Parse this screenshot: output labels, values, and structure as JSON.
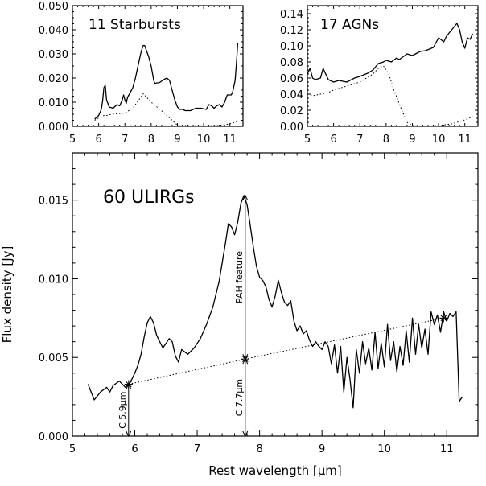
{
  "chart_data": [
    {
      "type": "line",
      "title": "11 Starbursts",
      "xlim": [
        5,
        11.5
      ],
      "ylim": [
        0,
        0.05
      ],
      "xticks": [
        5,
        6,
        7,
        8,
        9,
        10,
        11
      ],
      "yticks": [
        "0.000",
        "0.010",
        "0.020",
        "0.030",
        "0.040",
        "0.050"
      ],
      "series": [
        {
          "style": "solid",
          "x": [
            5.85,
            6.0,
            6.1,
            6.15,
            6.2,
            6.25,
            6.3,
            6.4,
            6.55,
            6.7,
            6.8,
            6.9,
            6.95,
            7.0,
            7.05,
            7.1,
            7.2,
            7.3,
            7.4,
            7.5,
            7.6,
            7.65,
            7.7,
            7.75,
            7.8,
            7.9,
            8.0,
            8.1,
            8.15,
            8.2,
            8.3,
            8.5,
            8.6,
            8.7,
            8.8,
            8.9,
            9.0,
            9.1,
            9.2,
            9.3,
            9.5,
            9.7,
            9.9,
            10.1,
            10.2,
            10.3,
            10.4,
            10.5,
            10.6,
            10.7,
            10.8,
            10.9,
            11.0,
            11.05,
            11.1,
            11.2,
            11.25,
            11.3
          ],
          "y": [
            0.003,
            0.0045,
            0.007,
            0.0105,
            0.016,
            0.017,
            0.011,
            0.008,
            0.0075,
            0.009,
            0.0085,
            0.011,
            0.013,
            0.011,
            0.0095,
            0.012,
            0.014,
            0.016,
            0.02,
            0.025,
            0.03,
            0.032,
            0.0335,
            0.0335,
            0.032,
            0.029,
            0.025,
            0.019,
            0.0175,
            0.018,
            0.018,
            0.0195,
            0.02,
            0.019,
            0.015,
            0.011,
            0.008,
            0.007,
            0.007,
            0.0065,
            0.0065,
            0.0075,
            0.0075,
            0.007,
            0.009,
            0.0085,
            0.0075,
            0.0085,
            0.009,
            0.008,
            0.01,
            0.013,
            0.013,
            0.013,
            0.014,
            0.019,
            0.026,
            0.0345
          ]
        },
        {
          "style": "dotted",
          "x": [
            5.85,
            6.0,
            6.2,
            6.3,
            6.5,
            7.0,
            7.3,
            7.7,
            8.0,
            8.5,
            8.8,
            9.0,
            9.5,
            10.0,
            10.5,
            11.0,
            11.3
          ],
          "y": [
            0.0025,
            0.0035,
            0.0045,
            0.0045,
            0.005,
            0.0055,
            0.0075,
            0.0135,
            0.01,
            0.0055,
            0.0025,
            0.0005,
            0.0002,
            0.0002,
            0.0003,
            0.001,
            0.002
          ]
        }
      ]
    },
    {
      "type": "line",
      "title": "17 AGNs",
      "xlim": [
        5,
        11.5
      ],
      "ylim": [
        0,
        0.15
      ],
      "xticks": [
        5,
        6,
        7,
        8,
        9,
        10,
        11
      ],
      "yticks": [
        "0.00",
        "0.02",
        "0.04",
        "0.06",
        "0.08",
        "0.10",
        "0.12",
        "0.14"
      ],
      "series": [
        {
          "style": "solid",
          "x": [
            5.0,
            5.1,
            5.2,
            5.3,
            5.5,
            5.6,
            5.7,
            5.8,
            6.0,
            6.2,
            6.5,
            6.8,
            7.0,
            7.3,
            7.5,
            7.7,
            7.9,
            8.0,
            8.2,
            8.4,
            8.5,
            8.8,
            9.0,
            9.3,
            9.5,
            9.8,
            10.0,
            10.2,
            10.3,
            10.5,
            10.7,
            10.8,
            10.9,
            11.0,
            11.1,
            11.2,
            11.3
          ],
          "y": [
            0.065,
            0.072,
            0.06,
            0.058,
            0.06,
            0.072,
            0.065,
            0.058,
            0.055,
            0.057,
            0.055,
            0.06,
            0.062,
            0.066,
            0.07,
            0.078,
            0.08,
            0.082,
            0.08,
            0.085,
            0.083,
            0.09,
            0.088,
            0.093,
            0.094,
            0.098,
            0.11,
            0.105,
            0.112,
            0.12,
            0.128,
            0.12,
            0.105,
            0.097,
            0.11,
            0.108,
            0.115
          ]
        },
        {
          "style": "dotted",
          "x": [
            5.0,
            5.2,
            5.5,
            5.8,
            6.0,
            6.5,
            7.0,
            7.5,
            7.7,
            7.9,
            8.1,
            8.3,
            8.6,
            8.8,
            9.0,
            9.5,
            10.0,
            10.5,
            11.0,
            11.3
          ],
          "y": [
            0.04,
            0.038,
            0.04,
            0.042,
            0.045,
            0.05,
            0.055,
            0.065,
            0.072,
            0.075,
            0.065,
            0.045,
            0.02,
            0.005,
            0.001,
            0.0,
            0.001,
            0.003,
            0.008,
            0.012
          ]
        }
      ]
    },
    {
      "type": "line",
      "title": "60 ULIRGs",
      "xlabel": "Rest wavelength [μm]",
      "ylabel": "Flux density [Jy]",
      "xlim": [
        5,
        11.5
      ],
      "ylim": [
        0,
        0.018
      ],
      "xticks": [
        5,
        6,
        7,
        8,
        9,
        10,
        11
      ],
      "yticks": [
        "0.000",
        "0.005",
        "0.010",
        "0.015"
      ],
      "series": [
        {
          "style": "solid",
          "x": [
            5.25,
            5.35,
            5.45,
            5.55,
            5.6,
            5.65,
            5.75,
            5.85,
            5.9,
            5.95,
            6.0,
            6.05,
            6.1,
            6.15,
            6.2,
            6.25,
            6.3,
            6.35,
            6.45,
            6.55,
            6.6,
            6.65,
            6.7,
            6.75,
            6.85,
            6.95,
            7.05,
            7.15,
            7.25,
            7.35,
            7.45,
            7.5,
            7.55,
            7.6,
            7.65,
            7.7,
            7.75,
            7.8,
            7.85,
            7.9,
            7.95,
            8.0,
            8.05,
            8.1,
            8.15,
            8.2,
            8.25,
            8.3,
            8.35,
            8.4,
            8.45,
            8.5,
            8.55,
            8.6,
            8.65,
            8.7,
            8.75,
            8.8,
            8.85,
            8.9,
            8.95,
            9.0,
            9.05,
            9.1,
            9.15,
            9.2,
            9.25,
            9.3,
            9.35,
            9.4,
            9.45,
            9.5,
            9.55,
            9.6,
            9.65,
            9.7,
            9.75,
            9.8,
            9.85,
            9.9,
            9.95,
            10.0,
            10.05,
            10.1,
            10.15,
            10.2,
            10.25,
            10.3,
            10.35,
            10.4,
            10.45,
            10.5,
            10.55,
            10.6,
            10.65,
            10.7,
            10.75,
            10.8,
            10.85,
            10.9,
            10.95,
            11.0,
            11.05,
            11.1,
            11.15,
            11.2,
            11.25
          ],
          "y": [
            0.0033,
            0.0023,
            0.0028,
            0.0031,
            0.0028,
            0.0032,
            0.0035,
            0.0031,
            0.0033,
            0.0036,
            0.004,
            0.0045,
            0.0052,
            0.0063,
            0.0072,
            0.0076,
            0.0072,
            0.0064,
            0.0056,
            0.0062,
            0.006,
            0.0051,
            0.0047,
            0.0055,
            0.0052,
            0.0056,
            0.0062,
            0.0071,
            0.0082,
            0.0098,
            0.0122,
            0.0135,
            0.0133,
            0.0128,
            0.0136,
            0.0148,
            0.0153,
            0.0147,
            0.0134,
            0.012,
            0.0108,
            0.0101,
            0.0099,
            0.0095,
            0.0087,
            0.0082,
            0.0089,
            0.0099,
            0.0091,
            0.0085,
            0.0083,
            0.0086,
            0.0073,
            0.0067,
            0.007,
            0.0065,
            0.0067,
            0.0061,
            0.0057,
            0.006,
            0.0057,
            0.0055,
            0.006,
            0.0057,
            0.0046,
            0.0058,
            0.004,
            0.0057,
            0.0028,
            0.005,
            0.0036,
            0.0018,
            0.0055,
            0.004,
            0.006,
            0.0046,
            0.0056,
            0.0042,
            0.0066,
            0.0043,
            0.0059,
            0.0044,
            0.0071,
            0.0048,
            0.006,
            0.0041,
            0.0057,
            0.0045,
            0.0067,
            0.0047,
            0.0075,
            0.0052,
            0.0071,
            0.0056,
            0.0068,
            0.0052,
            0.0079,
            0.0071,
            0.0077,
            0.0066,
            0.0079,
            0.0073,
            0.0078,
            0.0076,
            0.0079,
            0.0022,
            0.0025
          ]
        },
        {
          "style": "dotted",
          "x": [
            5.9,
            7.77,
            10.95
          ],
          "y": [
            0.0033,
            0.0049,
            0.0075
          ]
        }
      ],
      "markers": [
        {
          "x": 5.9,
          "y": 0.0033
        },
        {
          "x": 7.77,
          "y": 0.0049
        },
        {
          "x": 10.95,
          "y": 0.0075
        }
      ],
      "annotations": [
        {
          "text": "C 5.9μm",
          "x": 5.9,
          "y": 0.0033
        },
        {
          "text": "C 7.7μm",
          "x": 7.77,
          "y": 0.0049
        },
        {
          "text": "PAH feature",
          "x": 7.77,
          "y": 0.0153
        }
      ]
    }
  ]
}
